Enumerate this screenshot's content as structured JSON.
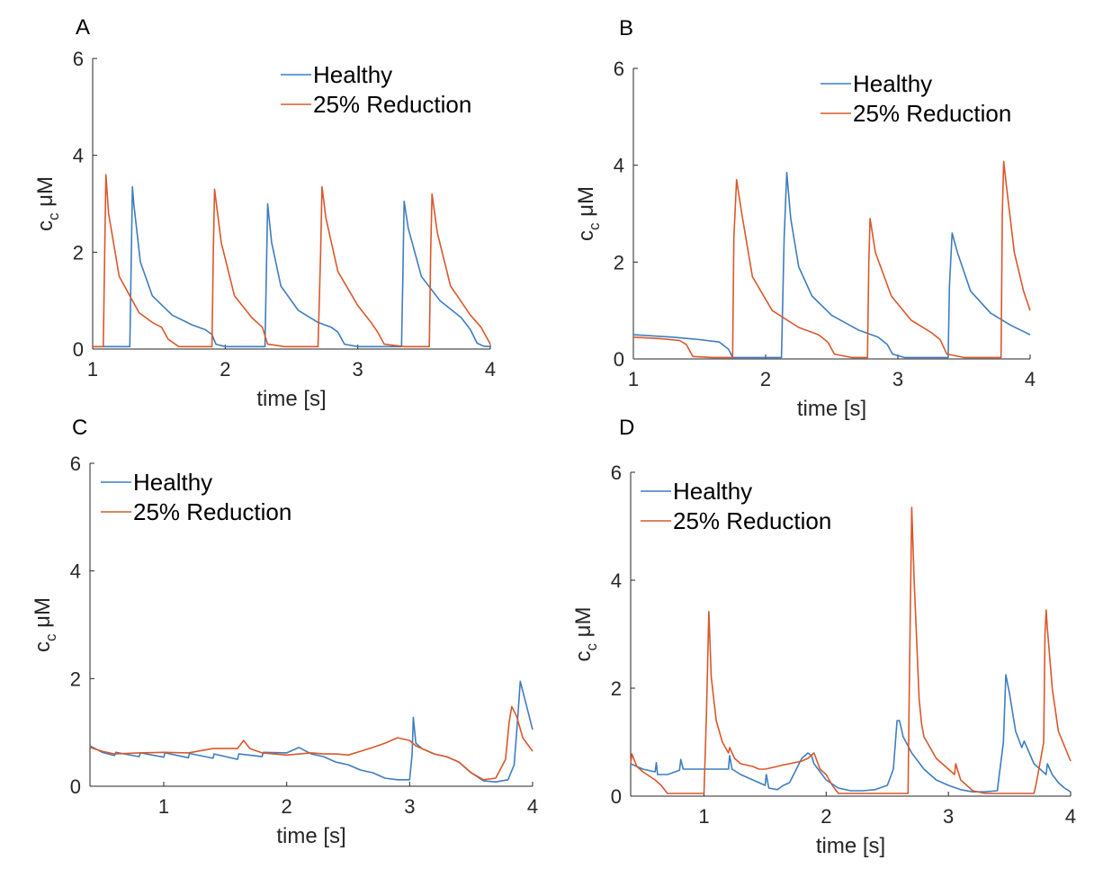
{
  "colors": {
    "healthy": "#3F7DBE",
    "reduced": "#D9582B"
  },
  "chart_data": [
    {
      "panel": "A",
      "type": "line",
      "xlabel": "time [s]",
      "ylabel": "c",
      "ylabel_sub": "c",
      "ylabel_unit": " μM",
      "xlim": [
        1,
        4
      ],
      "ylim": [
        0,
        6
      ],
      "xticks": [
        1,
        2,
        3,
        4
      ],
      "yticks": [
        0,
        2,
        4,
        6
      ],
      "legend": {
        "position": "top-right",
        "entries": [
          "Healthy",
          "25% Reduction"
        ]
      },
      "series": [
        {
          "name": "Healthy",
          "color_key": "healthy",
          "x": [
            1.0,
            1.28,
            1.3,
            1.31,
            1.36,
            1.45,
            1.6,
            1.75,
            1.85,
            1.9,
            1.93,
            2.0,
            2.1,
            2.2,
            2.3,
            2.31,
            2.32,
            2.35,
            2.42,
            2.55,
            2.7,
            2.8,
            2.85,
            2.9,
            3.0,
            3.1,
            3.2,
            3.3,
            3.33,
            3.34,
            3.35,
            3.38,
            3.48,
            3.62,
            3.78,
            3.85,
            3.9,
            3.95,
            4.0
          ],
          "y": [
            0.05,
            0.05,
            3.35,
            3.0,
            1.8,
            1.1,
            0.7,
            0.5,
            0.4,
            0.3,
            0.1,
            0.05,
            0.05,
            0.05,
            0.05,
            1.5,
            3.0,
            2.2,
            1.3,
            0.8,
            0.55,
            0.45,
            0.35,
            0.1,
            0.05,
            0.05,
            0.05,
            0.05,
            0.05,
            1.5,
            3.05,
            2.5,
            1.5,
            1.0,
            0.65,
            0.4,
            0.12,
            0.06,
            0.05
          ]
        },
        {
          "name": "25% Reduction",
          "color_key": "reduced",
          "x": [
            1.0,
            1.08,
            1.1,
            1.12,
            1.2,
            1.35,
            1.45,
            1.52,
            1.57,
            1.65,
            1.8,
            1.9,
            1.91,
            1.92,
            1.97,
            2.07,
            2.2,
            2.28,
            2.32,
            2.45,
            2.6,
            2.7,
            2.72,
            2.73,
            2.76,
            2.85,
            3.0,
            3.1,
            3.15,
            3.2,
            3.35,
            3.5,
            3.54,
            3.55,
            3.56,
            3.6,
            3.7,
            3.85,
            3.93,
            3.97,
            4.0
          ],
          "y": [
            0.05,
            0.05,
            3.6,
            2.8,
            1.5,
            0.75,
            0.55,
            0.45,
            0.2,
            0.05,
            0.05,
            0.05,
            2.0,
            3.3,
            2.2,
            1.1,
            0.65,
            0.45,
            0.1,
            0.05,
            0.05,
            0.05,
            2.0,
            3.35,
            2.7,
            1.6,
            0.9,
            0.55,
            0.35,
            0.1,
            0.05,
            0.05,
            0.05,
            2.0,
            3.2,
            2.4,
            1.3,
            0.7,
            0.45,
            0.25,
            0.1
          ]
        }
      ]
    },
    {
      "panel": "B",
      "type": "line",
      "xlabel": "time [s]",
      "ylabel": "c",
      "ylabel_sub": "c",
      "ylabel_unit": " μM",
      "xlim": [
        1,
        4
      ],
      "ylim": [
        0,
        6
      ],
      "xticks": [
        1,
        2,
        3,
        4
      ],
      "yticks": [
        0,
        2,
        4,
        6
      ],
      "legend": {
        "position": "top-right",
        "entries": [
          "Healthy",
          "25% Reduction"
        ]
      },
      "series": [
        {
          "name": "Healthy",
          "color_key": "healthy",
          "x": [
            1.0,
            1.3,
            1.5,
            1.65,
            1.72,
            1.75,
            1.8,
            2.0,
            2.12,
            2.14,
            2.16,
            2.19,
            2.25,
            2.35,
            2.5,
            2.7,
            2.85,
            2.92,
            2.96,
            3.05,
            3.2,
            3.38,
            3.39,
            3.41,
            3.45,
            3.55,
            3.7,
            3.85,
            4.0
          ],
          "y": [
            0.5,
            0.45,
            0.4,
            0.35,
            0.2,
            0.03,
            0.03,
            0.03,
            0.03,
            2.5,
            3.85,
            2.9,
            1.9,
            1.3,
            0.9,
            0.6,
            0.45,
            0.3,
            0.1,
            0.03,
            0.03,
            0.03,
            1.5,
            2.6,
            2.2,
            1.4,
            0.95,
            0.7,
            0.5
          ]
        },
        {
          "name": "25% Reduction",
          "color_key": "reduced",
          "x": [
            1.0,
            1.2,
            1.35,
            1.4,
            1.45,
            1.6,
            1.75,
            1.76,
            1.78,
            1.82,
            1.9,
            2.05,
            2.25,
            2.4,
            2.47,
            2.52,
            2.65,
            2.77,
            2.78,
            2.79,
            2.83,
            2.95,
            3.1,
            3.25,
            3.32,
            3.37,
            3.5,
            3.65,
            3.78,
            3.79,
            3.8,
            3.82,
            3.88,
            3.95,
            4.0
          ],
          "y": [
            0.45,
            0.42,
            0.38,
            0.3,
            0.05,
            0.03,
            0.03,
            2.5,
            3.7,
            3.0,
            1.7,
            1.0,
            0.65,
            0.5,
            0.35,
            0.1,
            0.03,
            0.03,
            2.0,
            2.9,
            2.2,
            1.3,
            0.8,
            0.55,
            0.4,
            0.1,
            0.03,
            0.03,
            0.03,
            3.0,
            4.08,
            3.6,
            2.2,
            1.4,
            1.0
          ]
        }
      ]
    },
    {
      "panel": "C",
      "type": "line",
      "xlabel": "time [s]",
      "ylabel": "c",
      "ylabel_sub": "c",
      "ylabel_unit": " μM",
      "xlim": [
        0.4,
        4
      ],
      "ylim": [
        0,
        6
      ],
      "xticks": [
        1,
        2,
        3,
        4
      ],
      "yticks": [
        0,
        2,
        4,
        6
      ],
      "legend": {
        "position": "top-left",
        "entries": [
          "Healthy",
          "25% Reduction"
        ]
      },
      "series": [
        {
          "name": "Healthy",
          "color_key": "healthy",
          "x": [
            0.4,
            0.5,
            0.6,
            0.61,
            0.8,
            0.81,
            1.0,
            1.01,
            1.2,
            1.21,
            1.4,
            1.41,
            1.6,
            1.61,
            1.8,
            1.81,
            2.0,
            2.1,
            2.2,
            2.3,
            2.4,
            2.5,
            2.6,
            2.7,
            2.8,
            2.9,
            3.0,
            3.02,
            3.03,
            3.05,
            3.1,
            3.2,
            3.3,
            3.4,
            3.5,
            3.6,
            3.7,
            3.8,
            3.85,
            3.88,
            3.9,
            3.95,
            4.0
          ],
          "y": [
            0.75,
            0.63,
            0.57,
            0.63,
            0.55,
            0.62,
            0.54,
            0.62,
            0.53,
            0.61,
            0.52,
            0.6,
            0.5,
            0.6,
            0.55,
            0.63,
            0.62,
            0.72,
            0.6,
            0.55,
            0.45,
            0.4,
            0.3,
            0.25,
            0.15,
            0.12,
            0.12,
            0.6,
            1.28,
            0.8,
            0.7,
            0.6,
            0.55,
            0.45,
            0.25,
            0.1,
            0.08,
            0.12,
            0.4,
            1.3,
            1.95,
            1.5,
            1.05
          ]
        },
        {
          "name": "25% Reduction",
          "color_key": "reduced",
          "x": [
            0.4,
            0.5,
            0.6,
            0.8,
            1.0,
            1.2,
            1.4,
            1.6,
            1.65,
            1.7,
            1.8,
            2.0,
            2.2,
            2.3,
            2.4,
            2.5,
            2.6,
            2.7,
            2.8,
            2.9,
            3.0,
            3.05,
            3.1,
            3.2,
            3.3,
            3.4,
            3.5,
            3.6,
            3.7,
            3.78,
            3.81,
            3.83,
            3.87,
            3.92,
            4.0
          ],
          "y": [
            0.72,
            0.65,
            0.6,
            0.62,
            0.63,
            0.62,
            0.7,
            0.7,
            0.85,
            0.7,
            0.62,
            0.58,
            0.62,
            0.6,
            0.6,
            0.58,
            0.65,
            0.72,
            0.8,
            0.9,
            0.85,
            0.75,
            0.7,
            0.6,
            0.55,
            0.45,
            0.25,
            0.12,
            0.15,
            0.5,
            1.2,
            1.48,
            1.3,
            0.9,
            0.65
          ]
        }
      ]
    },
    {
      "panel": "D",
      "type": "line",
      "xlabel": "time [s]",
      "ylabel": "c",
      "ylabel_sub": "c",
      "ylabel_unit": " μM",
      "xlim": [
        0.4,
        4
      ],
      "ylim": [
        0,
        6
      ],
      "xticks": [
        1,
        2,
        3,
        4
      ],
      "yticks": [
        0,
        2,
        4,
        6
      ],
      "legend": {
        "position": "top-left",
        "entries": [
          "Healthy",
          "25% Reduction"
        ]
      },
      "series": [
        {
          "name": "Healthy",
          "color_key": "healthy",
          "x": [
            0.4,
            0.5,
            0.6,
            0.61,
            0.62,
            0.65,
            0.7,
            0.8,
            0.81,
            0.83,
            0.9,
            1.0,
            1.1,
            1.2,
            1.21,
            1.23,
            1.3,
            1.4,
            1.5,
            1.51,
            1.53,
            1.6,
            1.65,
            1.7,
            1.8,
            1.85,
            1.88,
            1.9,
            2.0,
            2.1,
            2.2,
            2.3,
            2.4,
            2.5,
            2.55,
            2.58,
            2.6,
            2.63,
            2.7,
            2.8,
            2.9,
            3.0,
            3.1,
            3.2,
            3.3,
            3.4,
            3.45,
            3.47,
            3.5,
            3.55,
            3.6,
            3.62,
            3.7,
            3.8,
            3.81,
            3.85,
            3.9,
            3.95,
            4.0
          ],
          "y": [
            0.6,
            0.5,
            0.45,
            0.62,
            0.4,
            0.4,
            0.4,
            0.48,
            0.68,
            0.5,
            0.5,
            0.5,
            0.5,
            0.5,
            0.75,
            0.5,
            0.4,
            0.3,
            0.2,
            0.4,
            0.15,
            0.12,
            0.2,
            0.25,
            0.7,
            0.8,
            0.75,
            0.6,
            0.3,
            0.15,
            0.1,
            0.1,
            0.12,
            0.2,
            0.5,
            1.4,
            1.4,
            1.1,
            0.8,
            0.5,
            0.3,
            0.2,
            0.12,
            0.08,
            0.08,
            0.1,
            1.0,
            2.25,
            1.9,
            1.2,
            0.9,
            1.02,
            0.6,
            0.4,
            0.6,
            0.4,
            0.25,
            0.15,
            0.08
          ]
        },
        {
          "name": "25% Reduction",
          "color_key": "reduced",
          "x": [
            0.4,
            0.41,
            0.45,
            0.5,
            0.6,
            0.65,
            0.7,
            0.8,
            0.9,
            1.0,
            1.02,
            1.04,
            1.06,
            1.1,
            1.15,
            1.2,
            1.21,
            1.25,
            1.3,
            1.4,
            1.45,
            1.5,
            1.6,
            1.65,
            1.7,
            1.8,
            1.85,
            1.9,
            1.95,
            2.0,
            2.05,
            2.1,
            2.2,
            2.3,
            2.4,
            2.5,
            2.6,
            2.67,
            2.68,
            2.7,
            2.72,
            2.76,
            2.78,
            2.8,
            2.9,
            3.0,
            3.05,
            3.06,
            3.1,
            3.2,
            3.3,
            3.4,
            3.5,
            3.6,
            3.7,
            3.72,
            3.78,
            3.79,
            3.8,
            3.81,
            3.85,
            3.9,
            4.0
          ],
          "y": [
            0.6,
            0.78,
            0.55,
            0.45,
            0.3,
            0.2,
            0.05,
            0.05,
            0.05,
            0.05,
            1.5,
            3.42,
            2.2,
            1.4,
            1.0,
            0.8,
            0.9,
            0.7,
            0.6,
            0.55,
            0.5,
            0.5,
            0.55,
            0.58,
            0.6,
            0.65,
            0.7,
            0.8,
            0.5,
            0.4,
            0.2,
            0.05,
            0.05,
            0.05,
            0.05,
            0.05,
            0.05,
            0.05,
            2.0,
            5.35,
            4.0,
            1.8,
            1.35,
            1.1,
            0.7,
            0.5,
            0.4,
            0.6,
            0.3,
            0.1,
            0.05,
            0.05,
            0.05,
            0.05,
            0.05,
            0.25,
            1.0,
            3.0,
            3.45,
            3.1,
            2.0,
            1.2,
            0.65
          ]
        }
      ]
    }
  ]
}
